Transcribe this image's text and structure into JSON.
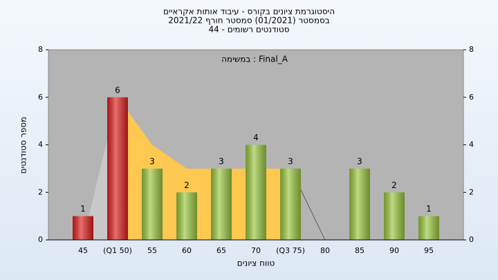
{
  "chart_data": {
    "type": "bar",
    "title": [
      "היסטוגרמת ציונים בקורס - עיבוד אותות אקראיים",
      "בסמסטר  (01/2021)  סמסטר חורף 2021/22",
      "סטודנטים רשומים - 44"
    ],
    "annotation": "במשימה : Final_A",
    "xlabel": "טווח ציונים",
    "ylabel": "מספר סטודנטים",
    "categories": [
      "45",
      "(Q1 50)",
      "55",
      "60",
      "65",
      "70",
      "(Q3 75)",
      "80",
      "85",
      "90",
      "95"
    ],
    "values": [
      1,
      6,
      3,
      2,
      3,
      4,
      3,
      0,
      3,
      2,
      1
    ],
    "colors": [
      "#e02020",
      "#e02020",
      "#9cc840",
      "#9cc840",
      "#9cc840",
      "#9cc840",
      "#9cc840",
      "#9cc840",
      "#9cc840",
      "#9cc840",
      "#9cc840"
    ],
    "area_values": [
      0,
      6,
      4,
      3,
      3,
      3,
      3,
      0,
      null,
      null,
      null
    ],
    "area_color": "#ffc850",
    "ylim": [
      0,
      8
    ],
    "yticks": [
      0,
      2,
      4,
      6,
      8
    ],
    "y2lim": [
      0,
      8
    ],
    "y2ticks": [
      0,
      2,
      4,
      6,
      8
    ]
  }
}
